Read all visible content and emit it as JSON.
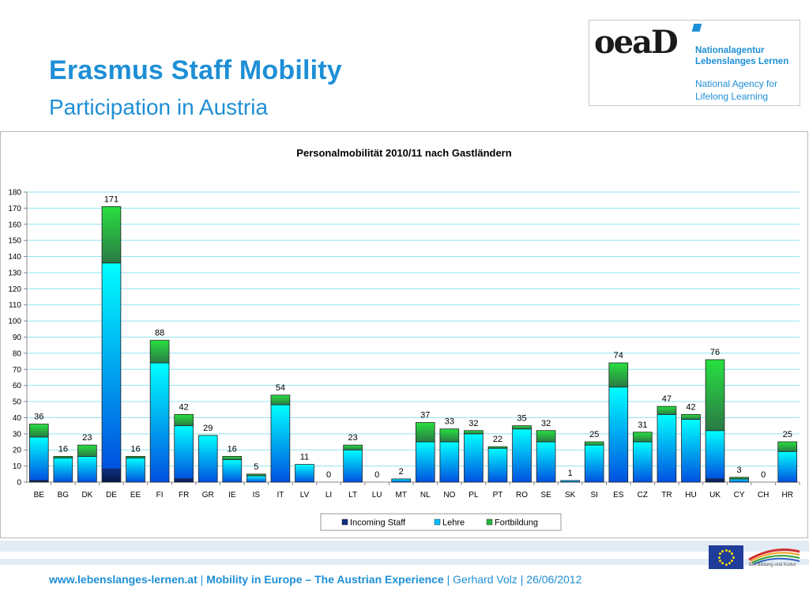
{
  "header": {
    "title": "Erasmus Staff Mobility",
    "subtitle": "Participation in Austria"
  },
  "logo": {
    "mark": "oeaD",
    "line1": "Nationalagentur",
    "line2": "Lebenslanges Lernen",
    "line3": "National Agency for",
    "line4": "Lifelong Learning"
  },
  "chart_data": {
    "type": "bar",
    "stacked": true,
    "title": "Personalmobilität 2010/11 nach Gastländern",
    "xlabel": "",
    "ylabel": "",
    "ylim": [
      0,
      180
    ],
    "ytick_step": 10,
    "grid": true,
    "legend_position": "bottom",
    "categories": [
      "BE",
      "BG",
      "DK",
      "DE",
      "EE",
      "FI",
      "FR",
      "GR",
      "IE",
      "IS",
      "IT",
      "LV",
      "LI",
      "LT",
      "LU",
      "MT",
      "NL",
      "NO",
      "PL",
      "PT",
      "RO",
      "SE",
      "SK",
      "SI",
      "ES",
      "CZ",
      "TR",
      "HU",
      "UK",
      "CY",
      "CH",
      "HR"
    ],
    "series": [
      {
        "name": "Incoming Staff",
        "color": "#0d2b6b",
        "values": [
          1,
          0,
          0,
          8,
          0,
          0,
          2,
          0,
          0,
          0,
          0,
          0,
          0,
          0,
          0,
          0,
          0,
          0,
          0,
          0,
          0,
          0,
          0,
          0,
          0,
          0,
          0,
          0,
          2,
          0,
          0,
          0
        ]
      },
      {
        "name": "Lehre",
        "color": "#00bfff",
        "values": [
          27,
          15,
          16,
          128,
          15,
          74,
          33,
          29,
          14,
          4,
          48,
          11,
          0,
          20,
          0,
          2,
          25,
          25,
          30,
          21,
          33,
          25,
          1,
          23,
          59,
          25,
          42,
          39,
          30,
          2,
          0,
          19
        ]
      },
      {
        "name": "Fortbildung",
        "color": "#22b43c",
        "values": [
          8,
          1,
          7,
          35,
          1,
          14,
          7,
          0,
          2,
          1,
          6,
          0,
          0,
          3,
          0,
          0,
          12,
          8,
          2,
          1,
          2,
          7,
          0,
          2,
          15,
          6,
          5,
          3,
          44,
          1,
          0,
          6
        ]
      }
    ],
    "totals": [
      36,
      16,
      23,
      171,
      16,
      88,
      42,
      29,
      16,
      5,
      54,
      11,
      0,
      23,
      0,
      2,
      37,
      33,
      32,
      22,
      35,
      32,
      1,
      25,
      74,
      31,
      47,
      42,
      76,
      3,
      0,
      25
    ]
  },
  "footer": {
    "url": "www.lebenslanges-lernen.at",
    "sep1": " | ",
    "project": "Mobility in Europe – The Austrian Experience",
    "sep2": " | ",
    "author_date": "Gerhard Volz | 26/06/2012"
  },
  "partner_logo": {
    "text": "BM Bildung und Kultur"
  }
}
